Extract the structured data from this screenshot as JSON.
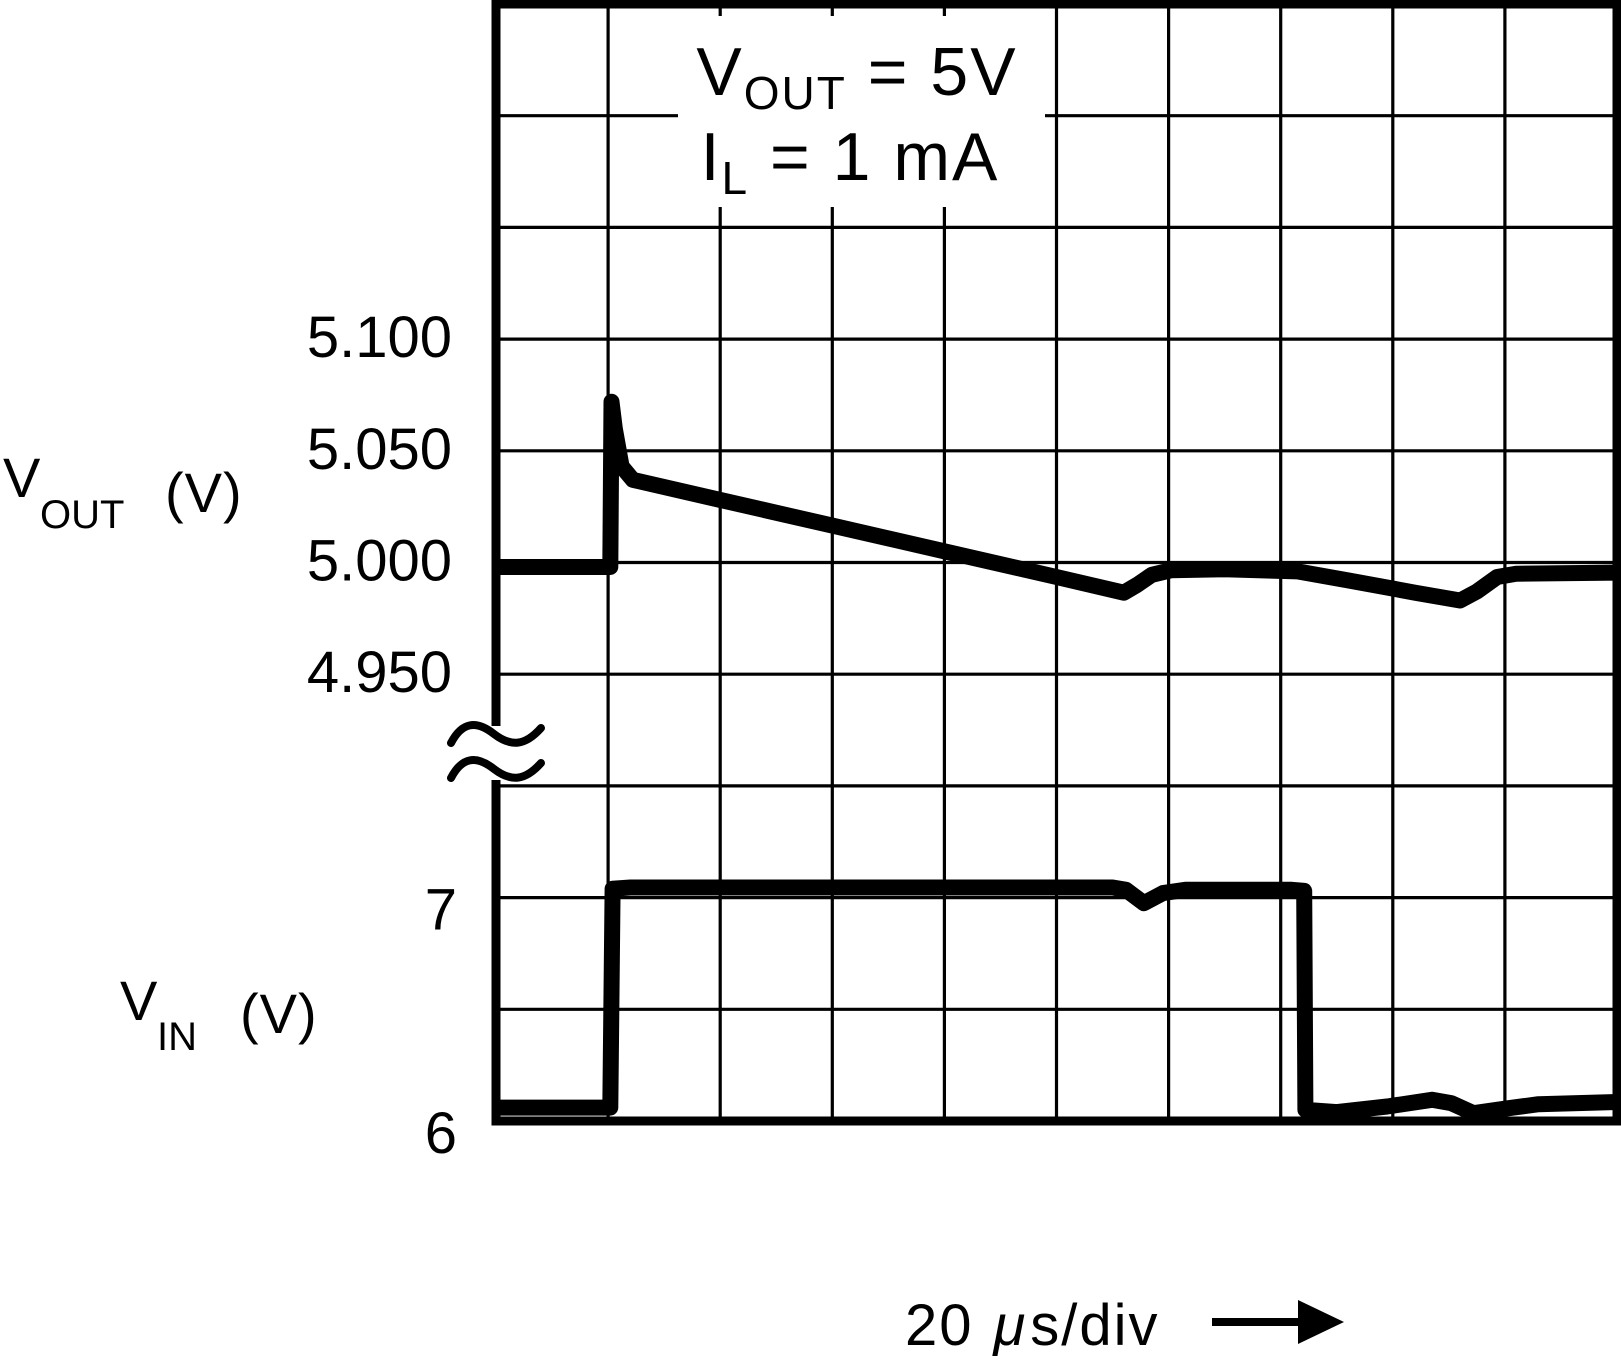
{
  "figure": {
    "upper_axis_label": {
      "sym": "V",
      "sub": "OUT",
      "unit": "(V)"
    },
    "lower_axis_label": {
      "sym": "V",
      "sub": "IN",
      "unit": "(V)"
    },
    "annotation": {
      "line1": {
        "sym": "V",
        "sub": "OUT",
        "rest": " = 5V"
      },
      "line2": {
        "sym": "I",
        "sub": "L",
        "rest": " = 1 mA"
      }
    },
    "x_axis_label": {
      "num": "20",
      "mu": "μ",
      "rest": "s/div"
    },
    "colors": {
      "ink": "#000000",
      "paper": "#ffffff"
    }
  },
  "chart_data": {
    "type": "line",
    "x_axis": {
      "label": "20 μs/div",
      "us_per_div": 20,
      "divisions": 10
    },
    "grid": {
      "rows": 10,
      "cols": 10,
      "grid_on": true
    },
    "conditions": [
      "VOUT = 5V",
      "IL = 1 mA"
    ],
    "axis_break": {
      "present": true,
      "between": [
        "VOUT scale",
        "VIN scale"
      ]
    },
    "scales": {
      "upper": {
        "name": "VOUT",
        "unit": "V",
        "anchor_value": 5.0,
        "anchor_row": 5,
        "volts_per_row": 0.05,
        "ticks": [
          {
            "label": "5.100",
            "value": 5.1
          },
          {
            "label": "5.050",
            "value": 5.05
          },
          {
            "label": "5.000",
            "value": 5.0
          },
          {
            "label": "4.950",
            "value": 4.95
          }
        ]
      },
      "lower": {
        "name": "VIN",
        "unit": "V",
        "anchor_value": 6.0,
        "anchor_row": 10,
        "volts_per_row": 0.5,
        "ticks": [
          {
            "label": "7",
            "value": 7
          },
          {
            "label": "6",
            "value": 6
          }
        ]
      }
    },
    "series": [
      {
        "name": "VOUT",
        "scale": "upper",
        "points": [
          [
            0.0,
            4.998
          ],
          [
            1.0,
            4.998
          ],
          [
            1.02,
            4.998
          ],
          [
            1.03,
            5.072
          ],
          [
            1.06,
            5.06
          ],
          [
            1.12,
            5.043
          ],
          [
            1.22,
            5.037
          ],
          [
            2.0,
            5.028
          ],
          [
            3.0,
            5.0165
          ],
          [
            4.0,
            5.005
          ],
          [
            5.0,
            4.9935
          ],
          [
            5.6,
            4.9865
          ],
          [
            5.72,
            4.99
          ],
          [
            5.85,
            4.9945
          ],
          [
            6.02,
            4.9965
          ],
          [
            6.5,
            4.997
          ],
          [
            7.15,
            4.996
          ],
          [
            7.6,
            4.992
          ],
          [
            8.2,
            4.9865
          ],
          [
            8.6,
            4.983
          ],
          [
            8.75,
            4.987
          ],
          [
            8.93,
            4.9935
          ],
          [
            9.1,
            4.995
          ],
          [
            10.0,
            4.9955
          ]
        ]
      },
      {
        "name": "VIN",
        "scale": "lower",
        "points": [
          [
            0.0,
            6.06
          ],
          [
            1.02,
            6.06
          ],
          [
            1.04,
            7.04
          ],
          [
            1.2,
            7.045
          ],
          [
            5.5,
            7.045
          ],
          [
            5.62,
            7.035
          ],
          [
            5.78,
            6.975
          ],
          [
            5.95,
            7.02
          ],
          [
            6.15,
            7.035
          ],
          [
            7.1,
            7.035
          ],
          [
            7.21,
            7.03
          ],
          [
            7.22,
            6.05
          ],
          [
            7.5,
            6.04
          ],
          [
            7.95,
            6.065
          ],
          [
            8.35,
            6.095
          ],
          [
            8.52,
            6.08
          ],
          [
            8.72,
            6.035
          ],
          [
            9.0,
            6.055
          ],
          [
            9.3,
            6.075
          ],
          [
            10.0,
            6.085
          ]
        ]
      }
    ]
  }
}
